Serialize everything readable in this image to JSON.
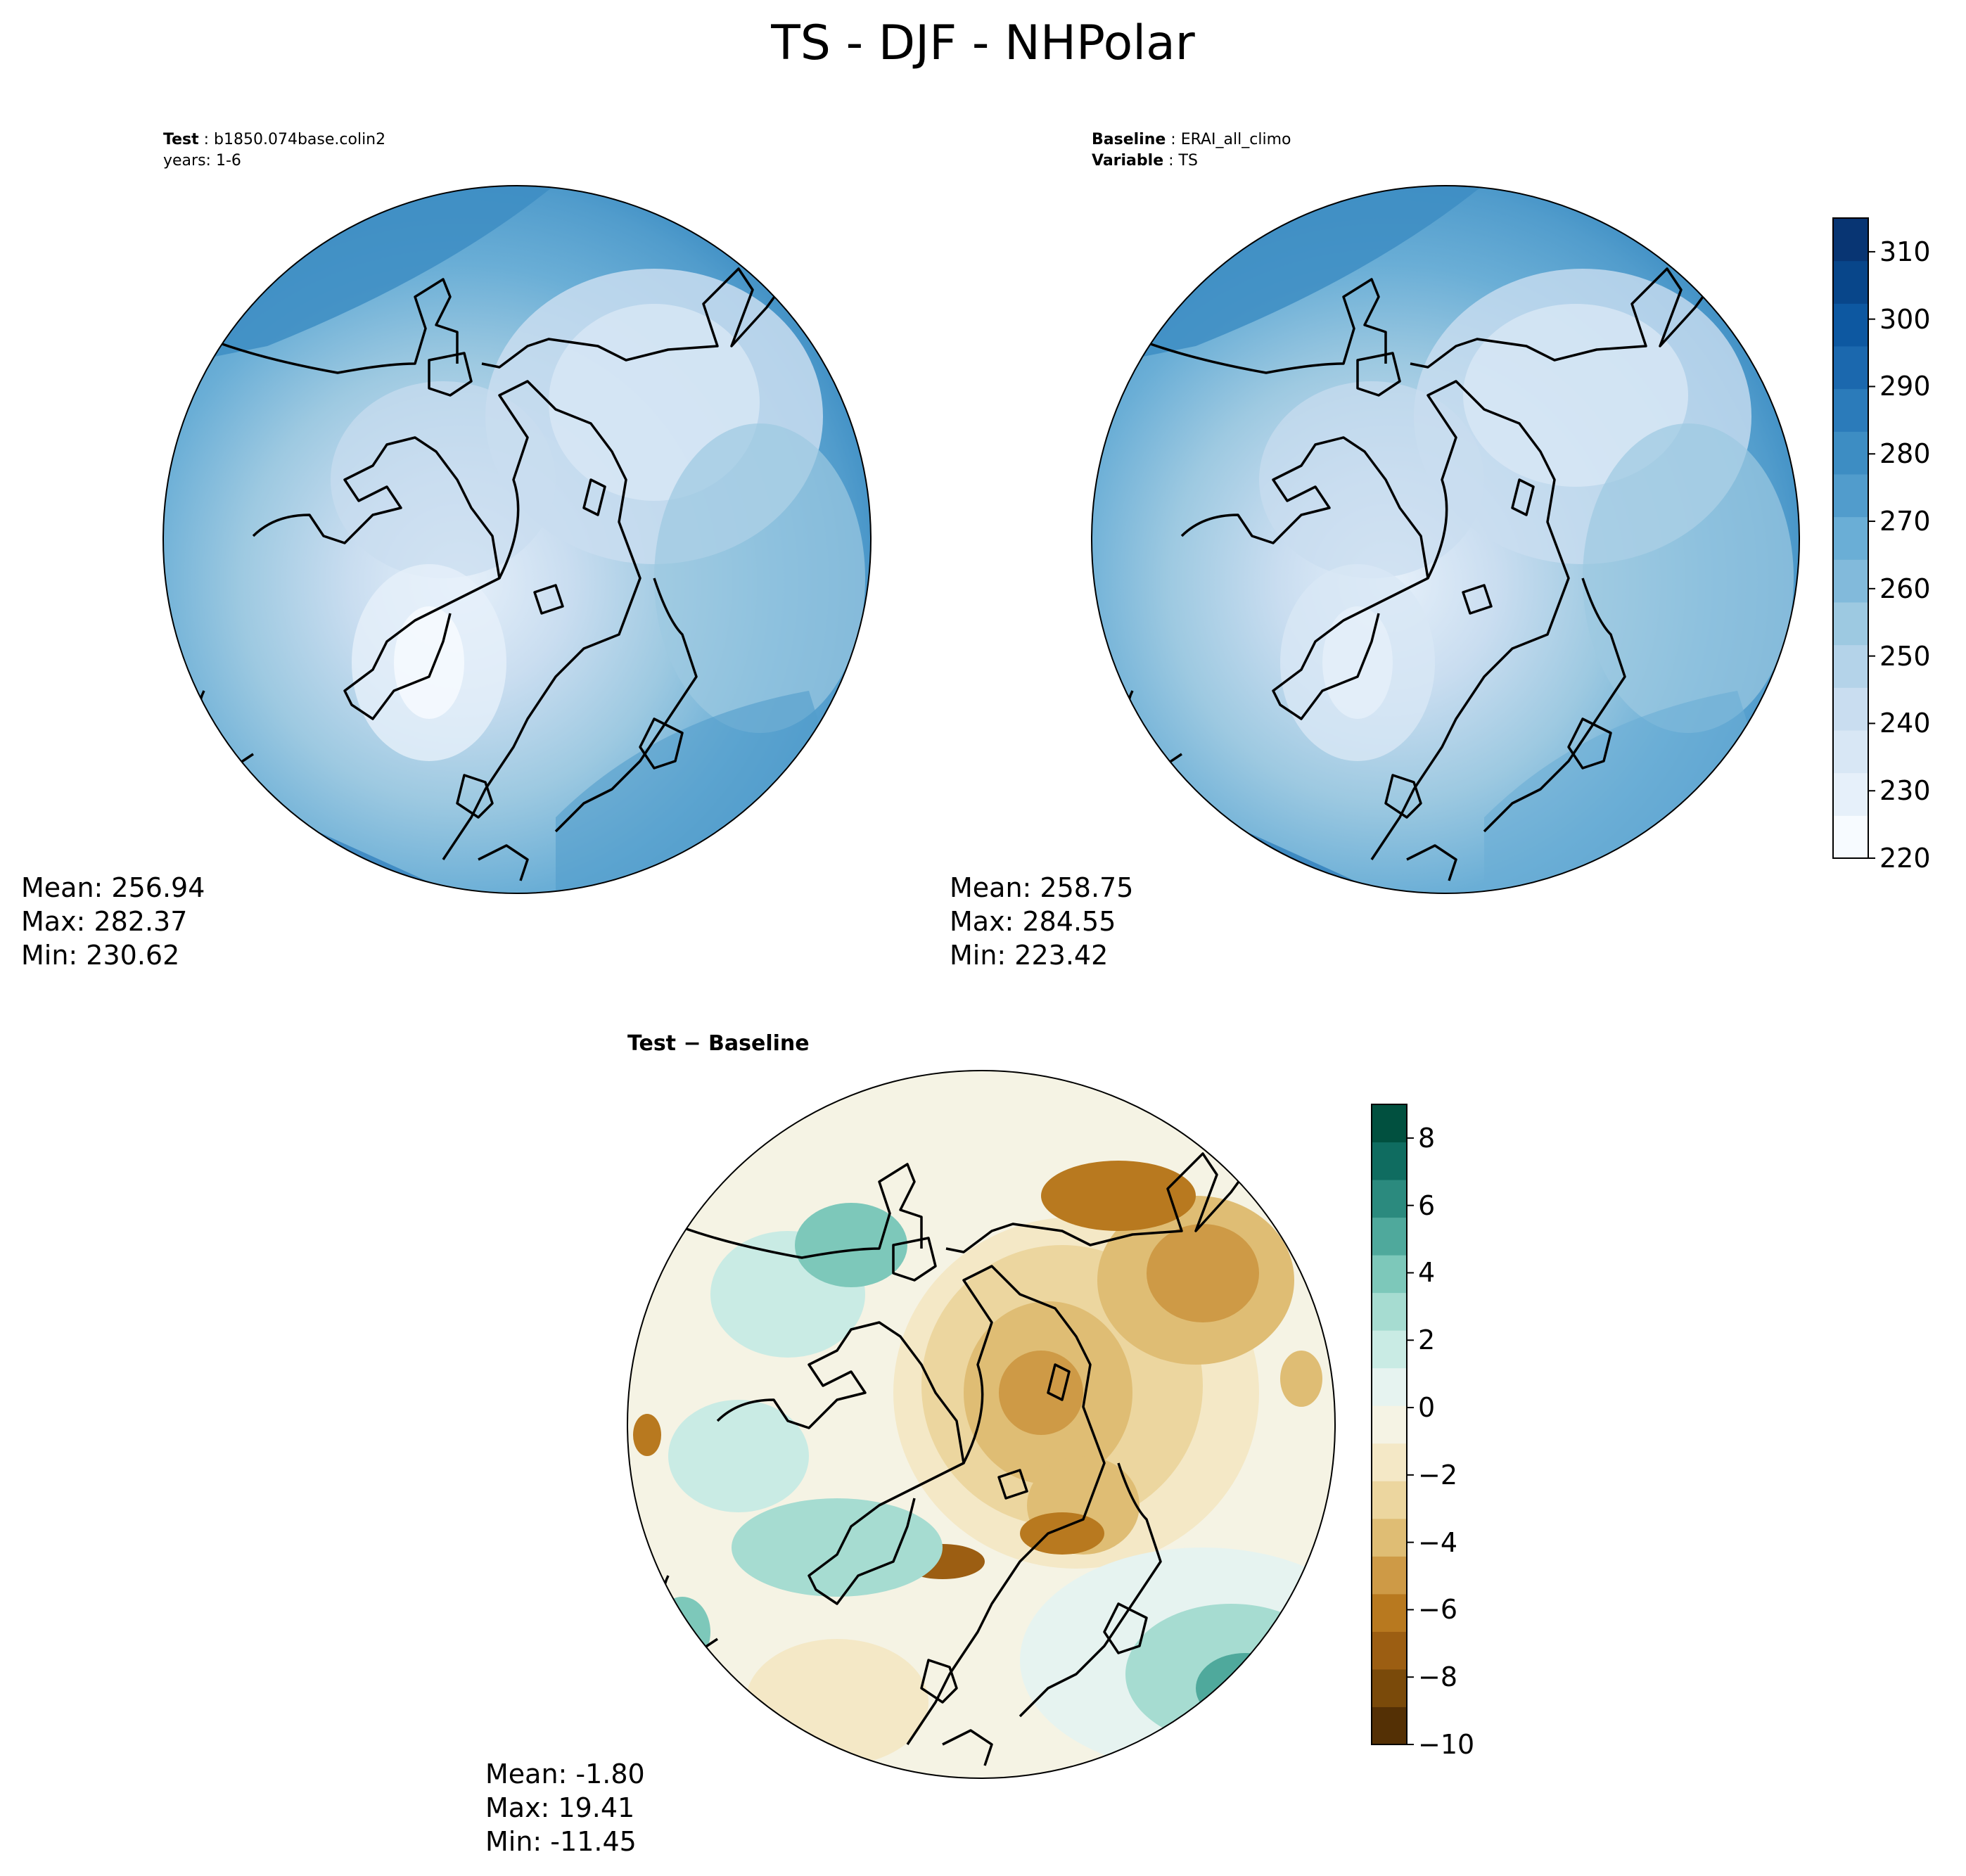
{
  "figure_title": "TS - DJF - NHPolar",
  "panels": {
    "test": {
      "header_key": "Test",
      "header_value": "b1850.074base.colin2",
      "subheader": "years: 1-6",
      "stats": {
        "mean": "Mean: 256.94",
        "max": "Max: 282.37",
        "min": "Min: 230.62"
      }
    },
    "baseline": {
      "header_key": "Baseline",
      "header_value": "ERAI_all_climo",
      "subheader_key": "Variable",
      "subheader_value": "TS",
      "stats": {
        "mean": "Mean: 258.75",
        "max": "Max: 284.55",
        "min": "Min: 223.42"
      }
    },
    "diff": {
      "header": "Test − Baseline",
      "stats": {
        "mean": "Mean: -1.80",
        "max": "Max: 19.41",
        "min": "Min: -11.45"
      }
    }
  },
  "colors": {
    "blues": [
      "#f7fbff",
      "#e6f0fa",
      "#d8e7f5",
      "#c9ddf0",
      "#b4d3e9",
      "#9dc9e1",
      "#82badb",
      "#6aaed6",
      "#519ccc",
      "#3d8dc3",
      "#2b7bba",
      "#1b68ae",
      "#0d58a1",
      "#08468a",
      "#083573"
    ],
    "brbg": [
      "#543005",
      "#7a4a0a",
      "#9c5e12",
      "#b8791f",
      "#ce9a46",
      "#dfbd74",
      "#ecd69f",
      "#f4e8c6",
      "#f5f3e4",
      "#e6f3f0",
      "#c9ebe4",
      "#a6dcd1",
      "#7dc8ba",
      "#4fa99c",
      "#2b8a7e",
      "#0f6c60",
      "#01503f"
    ]
  },
  "chart_data": [
    {
      "type": "heatmap",
      "name": "test",
      "projection": "north polar stereographic",
      "colorbar": {
        "min": 220,
        "max": 315,
        "step": 5,
        "ticks": [
          "220",
          "230",
          "240",
          "250",
          "260",
          "270",
          "280",
          "290",
          "300",
          "310"
        ]
      }
    },
    {
      "type": "heatmap",
      "name": "baseline",
      "projection": "north polar stereographic",
      "colorbar": {
        "min": 220,
        "max": 315,
        "step": 5,
        "ticks": [
          "220",
          "230",
          "240",
          "250",
          "260",
          "270",
          "280",
          "290",
          "300",
          "310"
        ]
      }
    },
    {
      "type": "heatmap",
      "name": "test-minus-baseline",
      "projection": "north polar stereographic",
      "colorbar": {
        "min": -10,
        "max": 9,
        "ticks": [
          "8",
          "6",
          "4",
          "2",
          "0",
          "−2",
          "−4",
          "−6",
          "−8",
          "−10"
        ]
      }
    }
  ]
}
